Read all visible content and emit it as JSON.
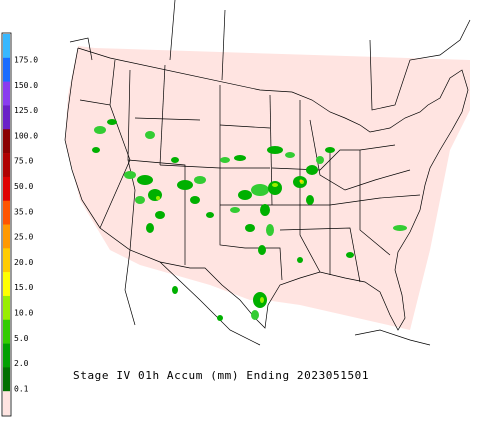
{
  "title": "Stage IV 01h Accum (mm) Ending 2023051501",
  "legend": {
    "labels": [
      "175.0",
      "150.0",
      "125.0",
      "100.0",
      "75.0",
      "50.0",
      "35.0",
      "25.0",
      "20.0",
      "15.0",
      "10.0",
      "5.0",
      "2.0",
      "0.1"
    ]
  }
}
